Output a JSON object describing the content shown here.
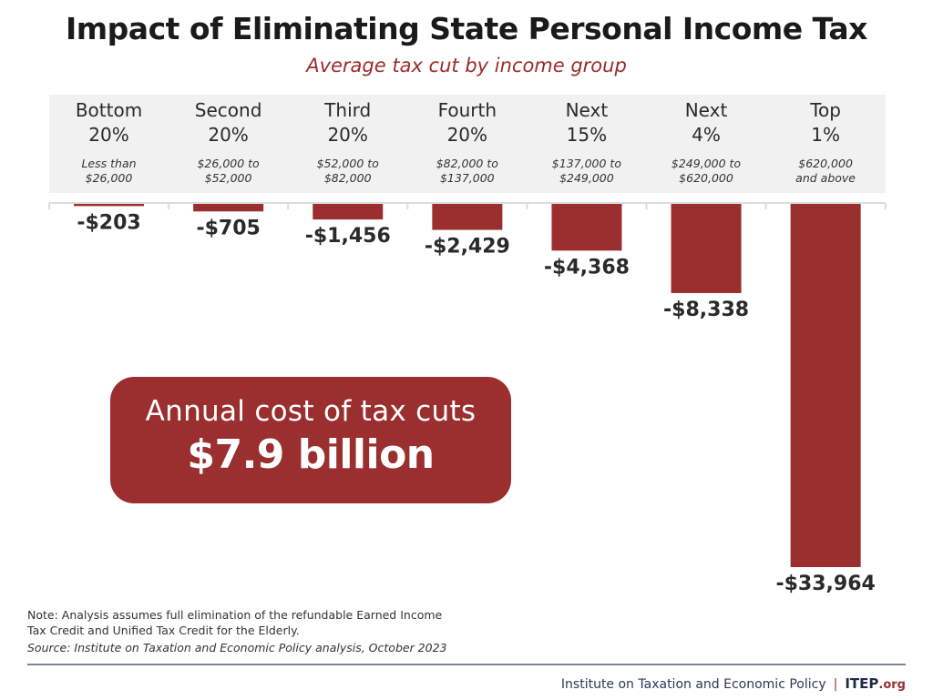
{
  "chart_data": {
    "type": "bar",
    "title": "Impact of Eliminating State Personal Income Tax",
    "subtitle": "Average tax cut by income group",
    "xlabel": "",
    "ylabel": "",
    "categories": [
      {
        "group": "Bottom",
        "share": "20%",
        "range": [
          "Less than",
          "$26,000"
        ]
      },
      {
        "group": "Second",
        "share": "20%",
        "range": [
          "$26,000 to",
          "$52,000"
        ]
      },
      {
        "group": "Third",
        "share": "20%",
        "range": [
          "$52,000 to",
          "$82,000"
        ]
      },
      {
        "group": "Fourth",
        "share": "20%",
        "range": [
          "$82,000 to",
          "$137,000"
        ]
      },
      {
        "group": "Next",
        "share": "15%",
        "range": [
          "$137,000 to",
          "$249,000"
        ]
      },
      {
        "group": "Next",
        "share": "4%",
        "range": [
          "$249,000 to",
          "$620,000"
        ]
      },
      {
        "group": "Top",
        "share": "1%",
        "range": [
          "$620,000",
          "and above"
        ]
      }
    ],
    "values": [
      -203,
      -705,
      -1456,
      -2429,
      -4368,
      -8338,
      -33964
    ],
    "value_labels": [
      "-$203",
      "-$705",
      "-$1,456",
      "-$2,429",
      "-$4,368",
      "-$8,338",
      "-$33,964"
    ],
    "ylim": [
      -33964,
      0
    ],
    "grid": false,
    "bar_color": "#9b2e2e"
  },
  "callout": {
    "line1": "Annual cost of tax cuts",
    "line2": "$7.9 billion"
  },
  "notes": {
    "note": "Note: Analysis assumes full elimination of the refundable Earned Income Tax Credit and Unified Tax Credit for the Elderly.",
    "source": "Source: Institute on Taxation and Economic Policy analysis, October 2023"
  },
  "footer": {
    "org_name": "Institute on Taxation and Economic Policy",
    "separator": "|",
    "brand": "ITEP",
    "brand_suffix": ".org"
  },
  "colors": {
    "accent": "#9b2e2e",
    "header_band": "#f1f1f1",
    "footer_navy": "#1d2b48"
  }
}
